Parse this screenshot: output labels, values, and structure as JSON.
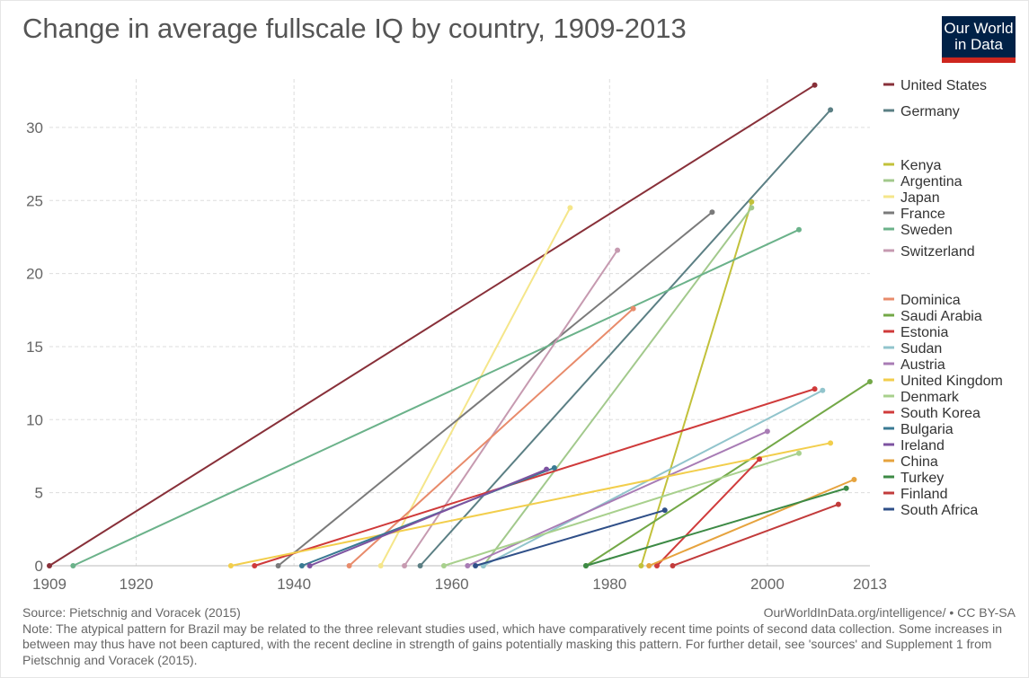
{
  "title": "Change in average fullscale IQ by country, 1909-2013",
  "logo": {
    "line1": "Our World",
    "line2": "in Data"
  },
  "footer": {
    "source": "Source: Pietschnig and Voracek (2015)",
    "url": "OurWorldInData.org/intelligence/ • CC BY-SA",
    "note": "Note: The atypical pattern for Brazil may be related to the three relevant studies used, which have comparatively recent time points of second data collection. Some increases in between may thus have not been captured, with the recent decline in strength of gains potentially masking this pattern. For further detail, see 'sources' and Supplement 1 from Pietschnig and Voracek (2015)."
  },
  "chart_data": {
    "type": "line",
    "title": "Change in average fullscale IQ by country, 1909-2013",
    "xlabel": "",
    "ylabel": "",
    "xlim": [
      1909,
      2013
    ],
    "ylim": [
      0,
      33
    ],
    "x_ticks": [
      "1909",
      "1920",
      "1940",
      "1960",
      "1980",
      "2000",
      "2013"
    ],
    "y_ticks": [
      "0",
      "5",
      "10",
      "15",
      "20",
      "25",
      "30"
    ],
    "grid": true,
    "legend_position": "right",
    "series": [
      {
        "name": "United States",
        "color": "#883039",
        "points": [
          [
            1909,
            0
          ],
          [
            2006,
            32.9
          ]
        ]
      },
      {
        "name": "Germany",
        "color": "#5b7f84",
        "points": [
          [
            1956,
            0
          ],
          [
            2008,
            31.2
          ]
        ]
      },
      {
        "name": "Kenya",
        "color": "#c2c13a",
        "points": [
          [
            1984,
            0
          ],
          [
            1998,
            24.9
          ]
        ]
      },
      {
        "name": "Argentina",
        "color": "#a2c98c",
        "points": [
          [
            1964,
            0
          ],
          [
            1998,
            24.5
          ]
        ]
      },
      {
        "name": "Japan",
        "color": "#f5e68a",
        "points": [
          [
            1951,
            0
          ],
          [
            1975,
            24.5
          ]
        ]
      },
      {
        "name": "France",
        "color": "#7a7a7a",
        "points": [
          [
            1938,
            0
          ],
          [
            1993,
            24.2
          ]
        ]
      },
      {
        "name": "Sweden",
        "color": "#6bb28a",
        "points": [
          [
            1912,
            0
          ],
          [
            2004,
            23.0
          ]
        ]
      },
      {
        "name": "Switzerland",
        "color": "#c69ab0",
        "points": [
          [
            1954,
            0
          ],
          [
            1981,
            21.6
          ]
        ]
      },
      {
        "name": "Dominica",
        "color": "#e88b6b",
        "points": [
          [
            1947,
            0
          ],
          [
            1983,
            17.6
          ]
        ]
      },
      {
        "name": "Saudi Arabia",
        "color": "#73a847",
        "points": [
          [
            1977,
            0
          ],
          [
            2013,
            12.6
          ]
        ]
      },
      {
        "name": "Estonia",
        "color": "#cf3a3a",
        "points": [
          [
            1935,
            0
          ],
          [
            2006,
            12.1
          ]
        ]
      },
      {
        "name": "Sudan",
        "color": "#91c4cc",
        "points": [
          [
            1964,
            0
          ],
          [
            2007,
            12.0
          ]
        ]
      },
      {
        "name": "Austria",
        "color": "#a87cb5",
        "points": [
          [
            1962,
            0
          ],
          [
            2000,
            9.2
          ]
        ]
      },
      {
        "name": "United Kingdom",
        "color": "#f2ce4c",
        "points": [
          [
            1932,
            0
          ],
          [
            2008,
            8.4
          ]
        ]
      },
      {
        "name": "Denmark",
        "color": "#a8d08d",
        "points": [
          [
            1959,
            0
          ],
          [
            2004,
            7.7
          ]
        ]
      },
      {
        "name": "South Korea",
        "color": "#d03b3b",
        "points": [
          [
            1986,
            0
          ],
          [
            1999,
            7.3
          ]
        ]
      },
      {
        "name": "Bulgaria",
        "color": "#3a7a93",
        "points": [
          [
            1941,
            0
          ],
          [
            1973,
            6.7
          ]
        ]
      },
      {
        "name": "Ireland",
        "color": "#7d52a0",
        "points": [
          [
            1942,
            0
          ],
          [
            1972,
            6.6
          ]
        ]
      },
      {
        "name": "China",
        "color": "#e6a33e",
        "points": [
          [
            1985,
            0
          ],
          [
            2011,
            5.9
          ]
        ]
      },
      {
        "name": "Turkey",
        "color": "#3d8a45",
        "points": [
          [
            1977,
            0
          ],
          [
            2010,
            5.3
          ]
        ]
      },
      {
        "name": "Finland",
        "color": "#c23b3b",
        "points": [
          [
            1988,
            0
          ],
          [
            2009,
            4.2
          ]
        ]
      },
      {
        "name": "South Africa",
        "color": "#2f4f88",
        "points": [
          [
            1963,
            0
          ],
          [
            1987,
            3.8
          ]
        ]
      }
    ]
  }
}
